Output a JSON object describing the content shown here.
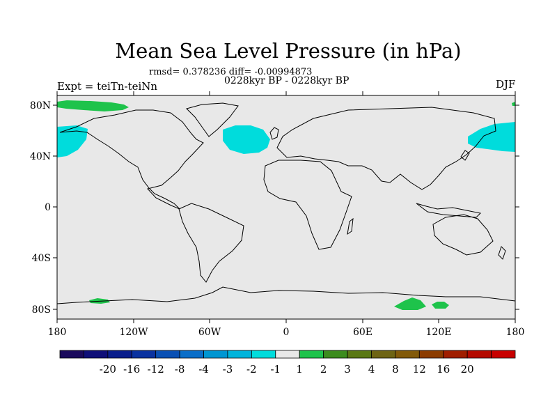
{
  "title": "Mean Sea Level Pressure (in hPa)",
  "stats": "rmsd= 0.378236 diff= -0.00994873",
  "period": "0228kyr BP - 0228kyr BP",
  "experiment": "Expt = teiTn-teiNn",
  "season": "DJF",
  "map": {
    "background_color": "#e8e8e8",
    "lon_ticks": [
      "180",
      "120W",
      "60W",
      "0",
      "60E",
      "120E",
      "180"
    ],
    "lat_ticks": [
      "80N",
      "40N",
      "0",
      "40S",
      "80S"
    ]
  },
  "colorbar": {
    "colors": [
      "#1a0a5c",
      "#0f0f78",
      "#0a1e8c",
      "#0a32a0",
      "#0a50b4",
      "#0a6ec8",
      "#0096d2",
      "#00b4dc",
      "#00dcdc",
      "#e8e8e8",
      "#1ec34b",
      "#3c8c1e",
      "#5a7814",
      "#6e6414",
      "#825a0a",
      "#8c3c00",
      "#a01e00",
      "#b40a00",
      "#c80000"
    ],
    "labels": [
      "-20",
      "-16",
      "-12",
      "-8",
      "-4",
      "-3",
      "-2",
      "-1",
      "1",
      "2",
      "3",
      "4",
      "8",
      "12",
      "16",
      "20"
    ],
    "label_unit": "hPa"
  }
}
